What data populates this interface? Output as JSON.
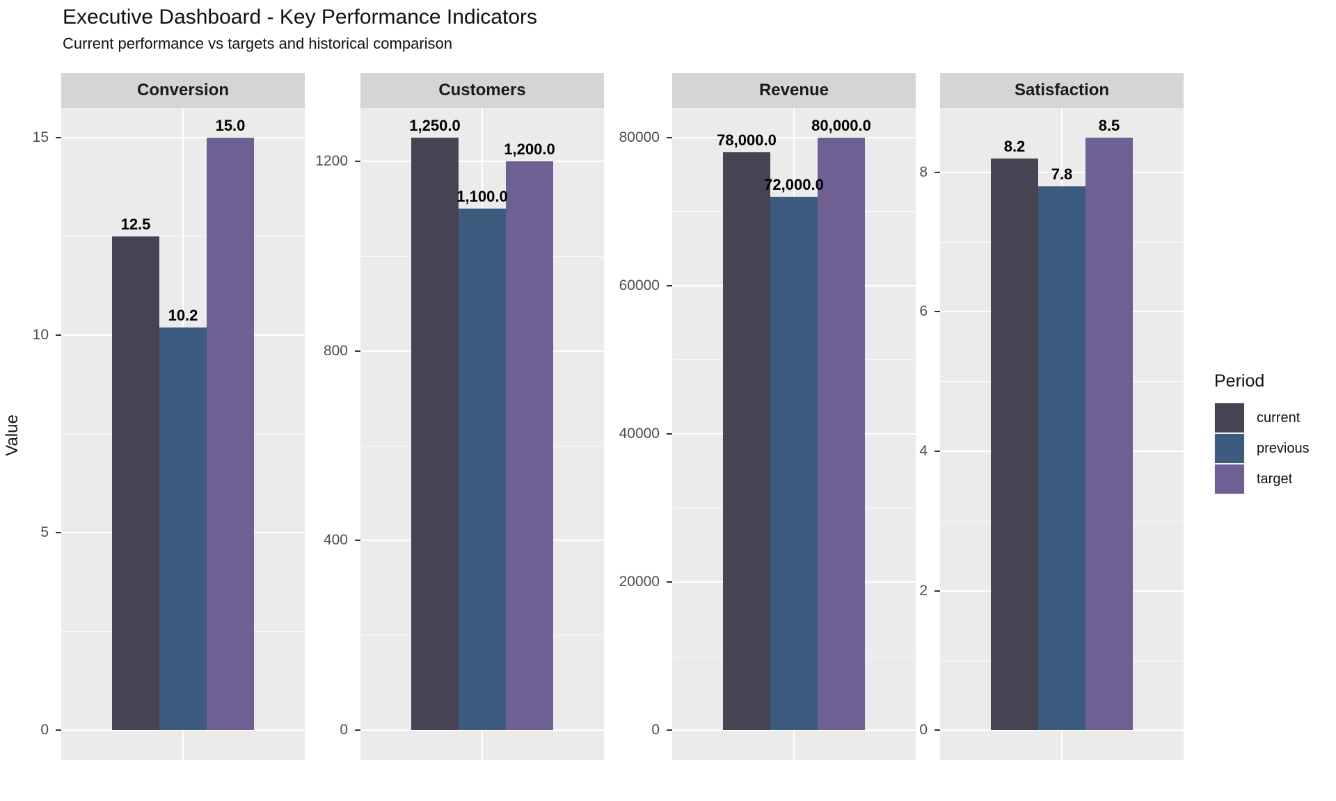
{
  "title": "Executive Dashboard - Key Performance Indicators",
  "subtitle": "Current performance vs targets and historical comparison",
  "y_axis_title": "Value",
  "legend": {
    "title": "Period",
    "items": [
      {
        "label": "current",
        "color": "#464353"
      },
      {
        "label": "previous",
        "color": "#3C5B7E"
      },
      {
        "label": "target",
        "color": "#6E6092"
      }
    ]
  },
  "chart_data": {
    "type": "bar",
    "faceted": true,
    "grid": true,
    "legend_position": "right",
    "title": "Executive Dashboard - Key Performance Indicators",
    "subtitle": "Current performance vs targets and historical comparison",
    "ylabel": "Value",
    "series": [
      {
        "name": "current",
        "color": "#464353",
        "values": [
          12.5,
          1250.0,
          78000.0,
          8.2
        ]
      },
      {
        "name": "previous",
        "color": "#3C5B7E",
        "values": [
          10.2,
          1100.0,
          72000.0,
          7.8
        ]
      },
      {
        "name": "target",
        "color": "#6E6092",
        "values": [
          15.0,
          1200.0,
          80000.0,
          8.5
        ]
      }
    ],
    "bar_labels": [
      [
        "12.5",
        "10.2",
        "15.0"
      ],
      [
        "1,250.0",
        "1,100.0",
        "1,200.0"
      ],
      [
        "78,000.0",
        "72,000.0",
        "80,000.0"
      ],
      [
        "8.2",
        "7.8",
        "8.5"
      ]
    ],
    "facets": [
      {
        "title": "Conversion",
        "axis_max": 15,
        "ylim": [
          0,
          15
        ],
        "major_ticks": [
          0,
          5,
          10,
          15
        ],
        "minor_ticks": [
          2.5,
          7.5,
          12.5
        ],
        "tick_labels": [
          "0",
          "5",
          "10",
          "15"
        ]
      },
      {
        "title": "Customers",
        "axis_max": 1250,
        "ylim": [
          0,
          1250
        ],
        "major_ticks": [
          0,
          400,
          800,
          1200
        ],
        "minor_ticks": [
          200,
          600,
          1000
        ],
        "tick_labels": [
          "0",
          "400",
          "800",
          "1200"
        ]
      },
      {
        "title": "Revenue",
        "axis_max": 80000,
        "ylim": [
          0,
          80000
        ],
        "major_ticks": [
          0,
          20000,
          40000,
          60000,
          80000
        ],
        "minor_ticks": [
          10000,
          30000,
          50000,
          70000
        ],
        "tick_labels": [
          "0",
          "20000",
          "40000",
          "60000",
          "80000"
        ]
      },
      {
        "title": "Satisfaction",
        "axis_max": 8.5,
        "ylim": [
          0,
          8.5
        ],
        "major_ticks": [
          0,
          2,
          4,
          6,
          8
        ],
        "minor_ticks": [
          1,
          3,
          5,
          7
        ],
        "tick_labels": [
          "0",
          "2",
          "4",
          "6",
          "8"
        ]
      }
    ]
  }
}
